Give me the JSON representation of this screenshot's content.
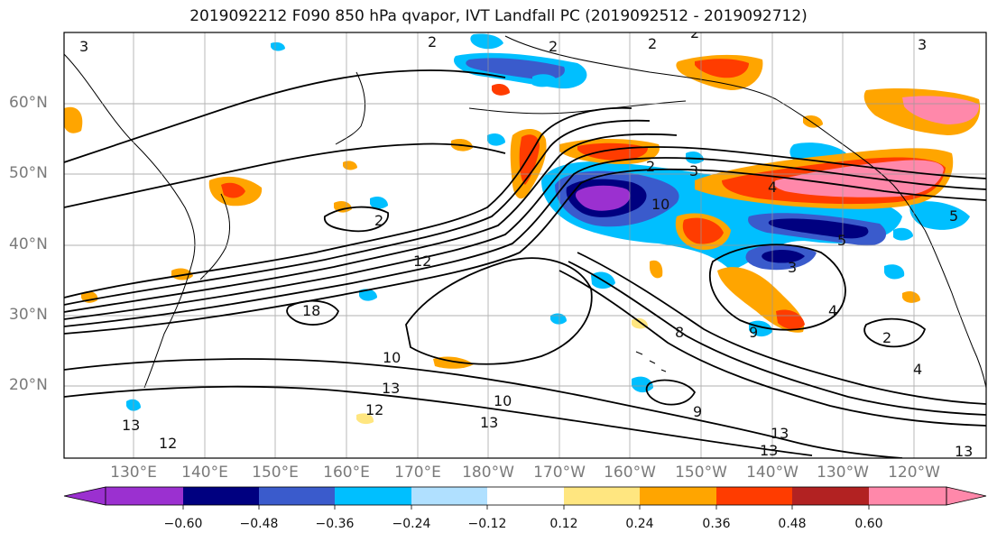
{
  "title": "2019092212 F090 850 hPa qvapor, IVT Landfall PC (2019092512 - 2019092712)",
  "lat_labels": [
    "60°N",
    "50°N",
    "40°N",
    "30°N",
    "20°N"
  ],
  "lon_labels": [
    "130°E",
    "140°E",
    "150°E",
    "160°E",
    "170°E",
    "180°W",
    "170°W",
    "160°W",
    "150°W",
    "140°W",
    "130°W",
    "120°W"
  ],
  "colorbar": {
    "ticks": [
      "−0.60",
      "−0.48",
      "−0.36",
      "−0.24",
      "−0.12",
      "0.12",
      "0.24",
      "0.36",
      "0.48",
      "0.60"
    ],
    "colors": [
      "#9b30d0",
      "#000080",
      "#3a5bcc",
      "#00bfff",
      "#b0e0ff",
      "#ffffff",
      "#ffe680",
      "#ffa500",
      "#ff3c00",
      "#b22222",
      "#ff88aa"
    ],
    "extend": "both"
  },
  "contour_labels": [
    {
      "text": "2"
    },
    {
      "text": "2"
    },
    {
      "text": "2"
    },
    {
      "text": "3"
    },
    {
      "text": "3"
    },
    {
      "text": "2"
    },
    {
      "text": "3"
    },
    {
      "text": "12"
    },
    {
      "text": "10"
    },
    {
      "text": "4"
    },
    {
      "text": "5"
    },
    {
      "text": "3"
    },
    {
      "text": "4"
    },
    {
      "text": "18"
    },
    {
      "text": "10"
    },
    {
      "text": "13"
    },
    {
      "text": "12"
    },
    {
      "text": "10"
    },
    {
      "text": "13"
    },
    {
      "text": "12"
    },
    {
      "text": "13"
    },
    {
      "text": "9"
    },
    {
      "text": "8"
    },
    {
      "text": "9"
    },
    {
      "text": "2"
    },
    {
      "text": "13"
    },
    {
      "text": "13"
    },
    {
      "text": "13"
    },
    {
      "text": "4"
    },
    {
      "text": "2"
    },
    {
      "text": "5"
    },
    {
      "text": "2"
    }
  ]
}
